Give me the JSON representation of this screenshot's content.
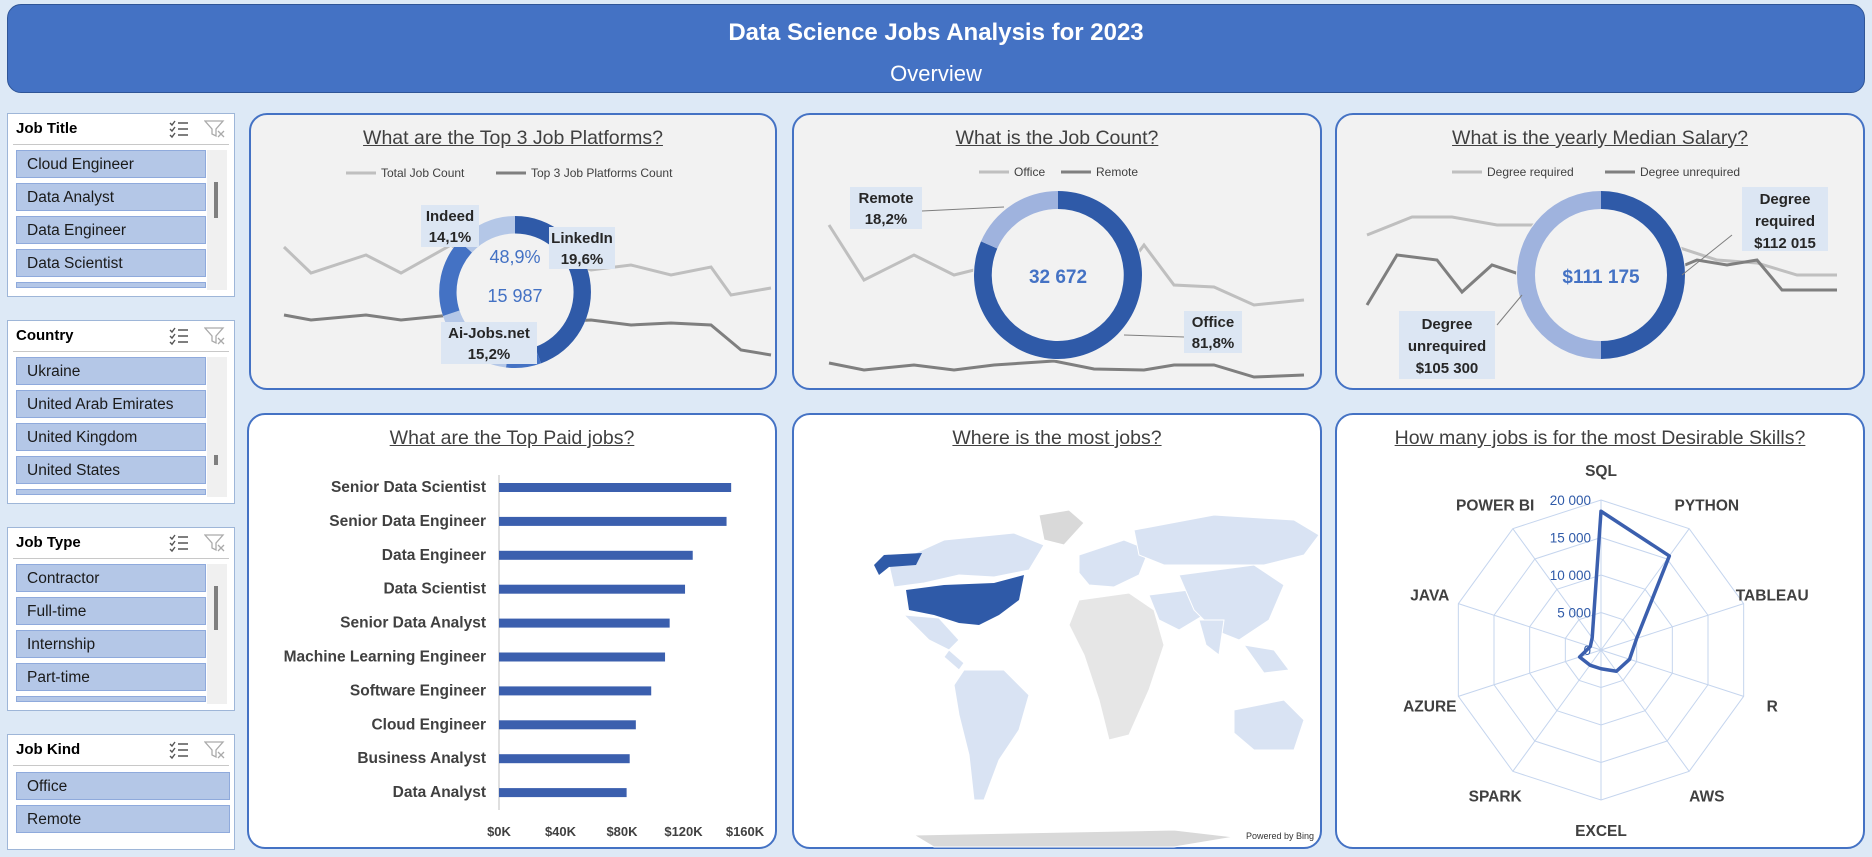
{
  "header": {
    "title": "Data Science Jobs Analysis for 2023",
    "subtitle": "Overview"
  },
  "slicers": {
    "job_title": {
      "label": "Job Title",
      "items": [
        "Cloud Engineer",
        "Data Analyst",
        "Data Engineer",
        "Data Scientist"
      ]
    },
    "country": {
      "label": "Country",
      "items": [
        "Ukraine",
        "United Arab Emirates",
        "United Kingdom",
        "United States"
      ]
    },
    "job_type": {
      "label": "Job Type",
      "items": [
        "Contractor",
        "Full-time",
        "Internship",
        "Part-time"
      ]
    },
    "job_kind": {
      "label": "Job Kind",
      "items": [
        "Office",
        "Remote"
      ]
    }
  },
  "platforms": {
    "title": "What are the Top 3 Job Platforms?",
    "legend": [
      "Total Job Count",
      "Top 3 Job Platforms Count"
    ],
    "percent": "48,9%",
    "count": "15 987",
    "labels": [
      {
        "name": "Indeed",
        "value": "14,1%"
      },
      {
        "name": "LinkedIn",
        "value": "19,6%"
      },
      {
        "name": "Ai-Jobs.net",
        "value": "15,2%"
      }
    ],
    "colors": {
      "dark": "#2f5aa8",
      "mid": "#4472c4",
      "light": "#9fb3de",
      "lighter": "#b4c7e7"
    }
  },
  "job_count": {
    "title": "What is the Job Count?",
    "legend": [
      "Office",
      "Remote"
    ],
    "total": "32 672",
    "remote": {
      "name": "Remote",
      "value": "18,2%"
    },
    "office": {
      "name": "Office",
      "value": "81,8%"
    }
  },
  "salary": {
    "title": "What is the yearly Median Salary?",
    "legend": [
      "Degree required",
      "Degree unrequired"
    ],
    "median": "$111 175",
    "required": {
      "line1": "Degree",
      "line2": "required",
      "value": "$112 015"
    },
    "unrequired": {
      "line1": "Degree",
      "line2": "unrequired",
      "value": "$105 300"
    }
  },
  "top_paid": {
    "title": "What are the Top Paid jobs?"
  },
  "map": {
    "title": "Where is the most jobs?",
    "powered": "Powered by Bing"
  },
  "skills": {
    "title": "How many jobs is for the most Desirable Skills?"
  },
  "chart_data": [
    {
      "type": "bar",
      "categories": [
        "Senior Data Scientist",
        "Senior Data Engineer",
        "Data Engineer",
        "Data Scientist",
        "Senior Data Analyst",
        "Machine Learning Engineer",
        "Software Engineer",
        "Cloud Engineer",
        "Business Analyst",
        "Data Analyst"
      ],
      "values": [
        151000,
        148000,
        126000,
        121000,
        111000,
        108000,
        99000,
        89000,
        85000,
        83000
      ],
      "xlim": [
        0,
        160000
      ],
      "ticks": [
        "$0K",
        "$40K",
        "$80K",
        "$120K",
        "$160K"
      ],
      "color": "#3b5fae"
    },
    {
      "type": "radar",
      "axes": [
        "SQL",
        "PYTHON",
        "TABLEAU",
        "R",
        "AWS",
        "EXCEL",
        "SPARK",
        "AZURE",
        "JAVA",
        "POWER BI"
      ],
      "values": [
        18500,
        15500,
        5000,
        4000,
        3500,
        2500,
        2500,
        3000,
        1500,
        2000
      ],
      "rlim": [
        0,
        20000
      ],
      "ticks": [
        "0",
        "5 000",
        "10 000",
        "15 000",
        "20 000"
      ],
      "color": "#3b5fae"
    }
  ]
}
